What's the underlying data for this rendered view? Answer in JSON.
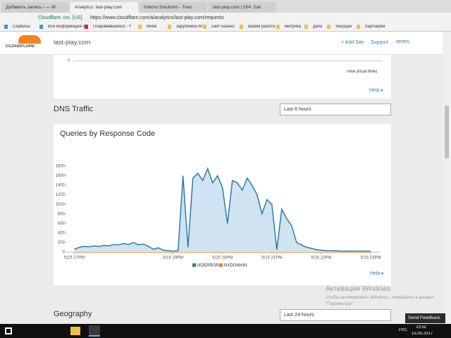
{
  "browser": {
    "tabs": [
      "Добавить запись ‹ — W",
      "Analytics: last-play.com",
      "Inferno Solutions - Тихо",
      "last-play.com | 504: Gat"
    ],
    "url_secure": "Cloudflare, Inc. [US]",
    "url": "https://www.cloudflare.com/a/analytics/last-play.com/requests",
    "bookmarks": [
      "Сервисы",
      "Вся информация о",
      "Понравившиеся - Y",
      "Иное",
      "зарубежка пп",
      "сайт казино",
      "время работа",
      "метрика",
      "дела",
      "текущее",
      "партнерки"
    ]
  },
  "header": {
    "logo": "CLOUDFLARE",
    "site": "last-play.com",
    "add_site": "+ Add Site",
    "support": "Support",
    "user": "dmitry"
  },
  "top_card": {
    "tick": "0",
    "axis_label": "Time (local time)",
    "help": "Help ▸"
  },
  "dns_section": {
    "title": "DNS Traffic",
    "select": "Last 6 hours"
  },
  "chart_data": {
    "type": "area",
    "title": "Queries by Response Code",
    "x": [
      17.0,
      17.1,
      17.2,
      17.3,
      17.4,
      17.5,
      17.6,
      17.7,
      17.8,
      17.9,
      18.0,
      18.1,
      18.2,
      18.3,
      18.4,
      18.5,
      18.6,
      18.7,
      18.8,
      18.9,
      19.0,
      19.1,
      19.2,
      19.3,
      19.4,
      19.5,
      19.6,
      19.7,
      19.8,
      19.9,
      20.0,
      20.1,
      20.2,
      20.3,
      20.4,
      20.5,
      20.6,
      20.7,
      20.8,
      20.9,
      21.0,
      21.1,
      21.2,
      21.3,
      21.4,
      21.5,
      21.6,
      21.7,
      21.8,
      21.9,
      22.0,
      22.1,
      22.2,
      22.3,
      22.4,
      22.5,
      22.6,
      22.7,
      22.8,
      22.9,
      23.0
    ],
    "series": [
      {
        "name": "NOERROR",
        "color": "#2c7cb0",
        "fill": "#cfe3f1",
        "values": [
          60,
          100,
          120,
          110,
          130,
          120,
          140,
          130,
          160,
          150,
          180,
          160,
          200,
          150,
          170,
          120,
          60,
          90,
          40,
          30,
          20,
          30,
          1600,
          100,
          1550,
          1650,
          1500,
          1750,
          1450,
          1600,
          1350,
          600,
          1500,
          1450,
          1300,
          1550,
          1400,
          1200,
          800,
          1100,
          1000,
          50,
          900,
          700,
          550,
          200,
          150,
          100,
          80,
          50,
          40,
          30,
          30,
          25,
          20,
          20,
          20,
          20,
          20,
          20,
          20
        ]
      },
      {
        "name": "NXDOMAIN",
        "color": "#f6821f",
        "values": [
          0,
          0,
          0,
          0,
          0,
          0,
          0,
          0,
          0,
          0,
          0,
          0,
          0,
          0,
          0,
          0,
          0,
          0,
          0,
          0,
          0,
          0,
          0,
          0,
          0,
          0,
          0,
          0,
          0,
          0,
          0,
          0,
          0,
          0,
          0,
          0,
          0,
          0,
          0,
          0,
          0,
          0,
          0,
          0,
          0,
          0,
          0,
          0,
          0,
          0,
          0,
          0,
          0,
          0,
          0,
          0,
          0,
          0,
          0,
          0,
          0
        ]
      }
    ],
    "ylim": [
      0,
      1800
    ],
    "yticks": [
      0,
      200,
      400,
      600,
      800,
      1000,
      1200,
      1400,
      1600,
      1800
    ],
    "xlim": [
      16.85,
      23.2
    ],
    "xticks": [
      {
        "value": 17,
        "label": "5/15 17PM"
      },
      {
        "value": 19,
        "label": "5/15 19PM"
      },
      {
        "value": 20,
        "label": "5/15 20PM"
      },
      {
        "value": 21,
        "label": "5/15 21PM"
      },
      {
        "value": 22,
        "label": "5/15 22PM"
      },
      {
        "value": 23,
        "label": "5/15 23PM"
      }
    ],
    "help": "Help ▸"
  },
  "geography": {
    "title": "Geography",
    "select": "Last 24 hours"
  },
  "watermark": {
    "title": "Активация Windows",
    "text": "Чтобы активировать Windows, перейдите в раздел \"Параметры\"."
  },
  "feedback": "Send Feedback",
  "taskbar": {
    "lang": "РУС",
    "time": "23:52",
    "date": "15.05.2017"
  }
}
